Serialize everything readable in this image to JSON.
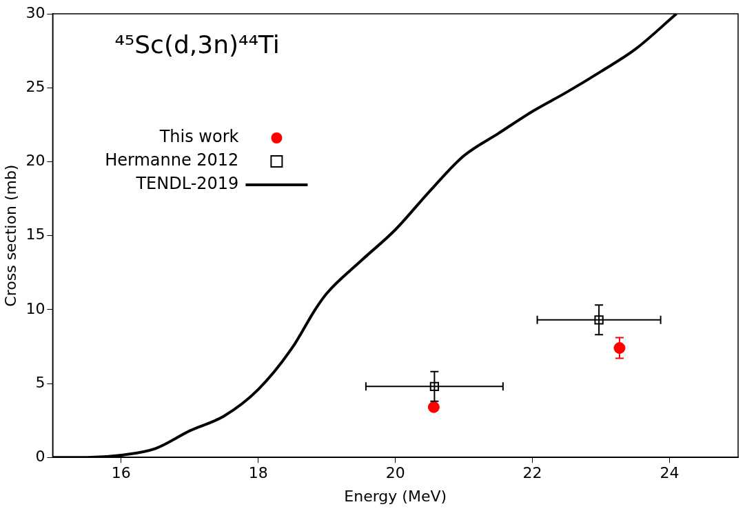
{
  "chart_data": {
    "type": "scatter",
    "xlabel": "Energy (MeV)",
    "ylabel": "Cross section (mb)",
    "annotations": [
      "⁴⁵Sc(d,3n)⁴⁴Ti"
    ],
    "xlim": [
      15,
      25
    ],
    "xticks": [
      16,
      18,
      20,
      22,
      24
    ],
    "ylim": [
      0,
      30
    ],
    "yticks": [
      0,
      5,
      10,
      15,
      20,
      25,
      30
    ],
    "grid": false,
    "legend": "top left",
    "series": [
      {
        "name": "This work",
        "marker": "circle",
        "color": "#ff0000",
        "x": [
          20.56,
          23.27
        ],
        "values": [
          3.4,
          7.4
        ],
        "errors": [
          0.2,
          0.7
        ]
      },
      {
        "name": "Hermanne 2012",
        "marker": "square",
        "color": "#000000",
        "x": [
          20.57,
          22.97
        ],
        "values": [
          4.8,
          9.3
        ],
        "errors": [
          1.0,
          1.0
        ],
        "xerrors": [
          1.0,
          0.9
        ]
      },
      {
        "name": "TENDL-2019",
        "type": "line",
        "marker": "none",
        "line_style": "solid",
        "color": "#000000",
        "x": [
          15,
          15.5,
          16,
          16.5,
          17,
          17.5,
          18,
          18.5,
          18.83,
          19,
          19.5,
          20,
          20.5,
          21,
          21.5,
          22,
          22.5,
          23,
          23.5,
          24.1
        ],
        "values": [
          0,
          0,
          0.15,
          0.6,
          1.8,
          2.8,
          4.6,
          7.45,
          10,
          11.1,
          13.3,
          15.4,
          18,
          20.4,
          21.9,
          23.4,
          24.7,
          26.1,
          27.6,
          30
        ]
      }
    ]
  }
}
